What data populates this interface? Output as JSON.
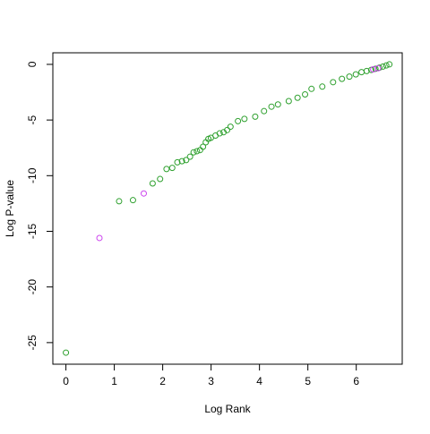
{
  "chart_data": {
    "type": "scatter",
    "xlabel": "Log Rank",
    "ylabel": "Log P-value",
    "xlim": [
      -0.27,
      6.95
    ],
    "ylim": [
      -26.94,
      1.04
    ],
    "xticks": [
      0,
      1,
      2,
      3,
      4,
      5,
      6
    ],
    "yticks": [
      0,
      -5,
      -10,
      -15,
      -20,
      -25
    ],
    "series": [
      {
        "color": "#2ea02e",
        "x": [
          0,
          1.099,
          1.386,
          1.792,
          1.946,
          2.079,
          2.197,
          2.303,
          2.398,
          2.485,
          2.565,
          2.639,
          2.708,
          2.773,
          2.833,
          2.89,
          2.944,
          2.996,
          3.091,
          3.178,
          3.258,
          3.332,
          3.401,
          3.555,
          3.689,
          3.912,
          4.094,
          4.248,
          4.382,
          4.605,
          4.787,
          4.942,
          5.075,
          5.298,
          5.521,
          5.704,
          5.858,
          5.991,
          6.109,
          6.215,
          6.31,
          6.397,
          6.477,
          6.551,
          6.62,
          6.685
        ],
        "values": [
          -25.9,
          -12.3,
          -12.2,
          -10.7,
          -10.3,
          -9.4,
          -9.3,
          -8.8,
          -8.7,
          -8.6,
          -8.3,
          -7.9,
          -7.8,
          -7.7,
          -7.4,
          -7.0,
          -6.7,
          -6.6,
          -6.4,
          -6.2,
          -6.1,
          -5.9,
          -5.6,
          -5.1,
          -4.9,
          -4.7,
          -4.2,
          -3.8,
          -3.6,
          -3.3,
          -3.0,
          -2.7,
          -2.2,
          -2.0,
          -1.6,
          -1.3,
          -1.1,
          -0.9,
          -0.7,
          -0.6,
          -0.5,
          -0.4,
          -0.3,
          -0.2,
          -0.1,
          0
        ]
      },
      {
        "color": "#cc44ee",
        "x": [
          0.693,
          1.609,
          6.35,
          6.45
        ],
        "values": [
          -15.6,
          -11.6,
          -0.45,
          -0.35
        ]
      }
    ]
  }
}
